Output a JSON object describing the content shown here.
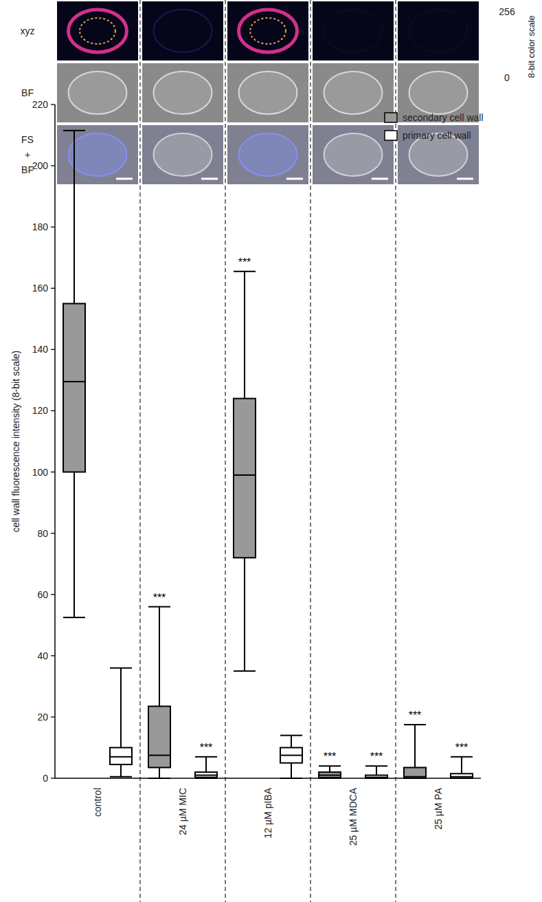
{
  "chart_data": {
    "type": "box",
    "y_label": "cell wall fluorescence intensity (8-bit scale)",
    "categories": [
      "control",
      "24 µM MIC",
      "12 µM pIBA",
      "25 µM MDCA",
      "25 µM PA"
    ],
    "ylim": [
      0,
      220
    ],
    "yticks": [
      0,
      20,
      40,
      60,
      80,
      100,
      120,
      140,
      160,
      180,
      200,
      220
    ],
    "legend": "top-right",
    "series": [
      {
        "name": "secondary cell wall",
        "color": "#999999",
        "values": [
          {
            "min": 52.5,
            "q1": 100,
            "median": 129.5,
            "q3": 155,
            "max": 211.5
          },
          {
            "min": 0,
            "q1": 3.5,
            "median": 7.5,
            "q3": 23.5,
            "max": 56
          },
          {
            "min": 35,
            "q1": 72,
            "median": 99,
            "q3": 124,
            "max": 165.5
          },
          {
            "min": 0,
            "q1": 0.2,
            "median": 1,
            "q3": 2,
            "max": 4
          },
          {
            "min": 0,
            "q1": 0,
            "median": 0.5,
            "q3": 3.5,
            "max": 17.5
          }
        ],
        "significance": [
          null,
          "***",
          "***",
          "***",
          "***"
        ]
      },
      {
        "name": "primary cell wall",
        "color": "#ffffff",
        "values": [
          {
            "min": 0.5,
            "q1": 4.5,
            "median": 7,
            "q3": 10,
            "max": 36
          },
          {
            "min": 0,
            "q1": 0.3,
            "median": 1,
            "q3": 2,
            "max": 7
          },
          {
            "min": 0,
            "q1": 5,
            "median": 7.5,
            "q3": 10,
            "max": 14
          },
          {
            "min": 0,
            "q1": 0,
            "median": 0.3,
            "q3": 1,
            "max": 4
          },
          {
            "min": 0,
            "q1": 0,
            "median": 0.5,
            "q3": 1.5,
            "max": 7
          }
        ],
        "significance": [
          null,
          "***",
          null,
          "***",
          "***"
        ]
      }
    ]
  },
  "image_panel": {
    "row_labels": [
      [
        "xyz"
      ],
      [
        "BF"
      ],
      [
        "FS",
        "+",
        "BF"
      ]
    ],
    "color_scale": {
      "label": "8-bit color scale",
      "max": 256,
      "min": 0
    }
  }
}
